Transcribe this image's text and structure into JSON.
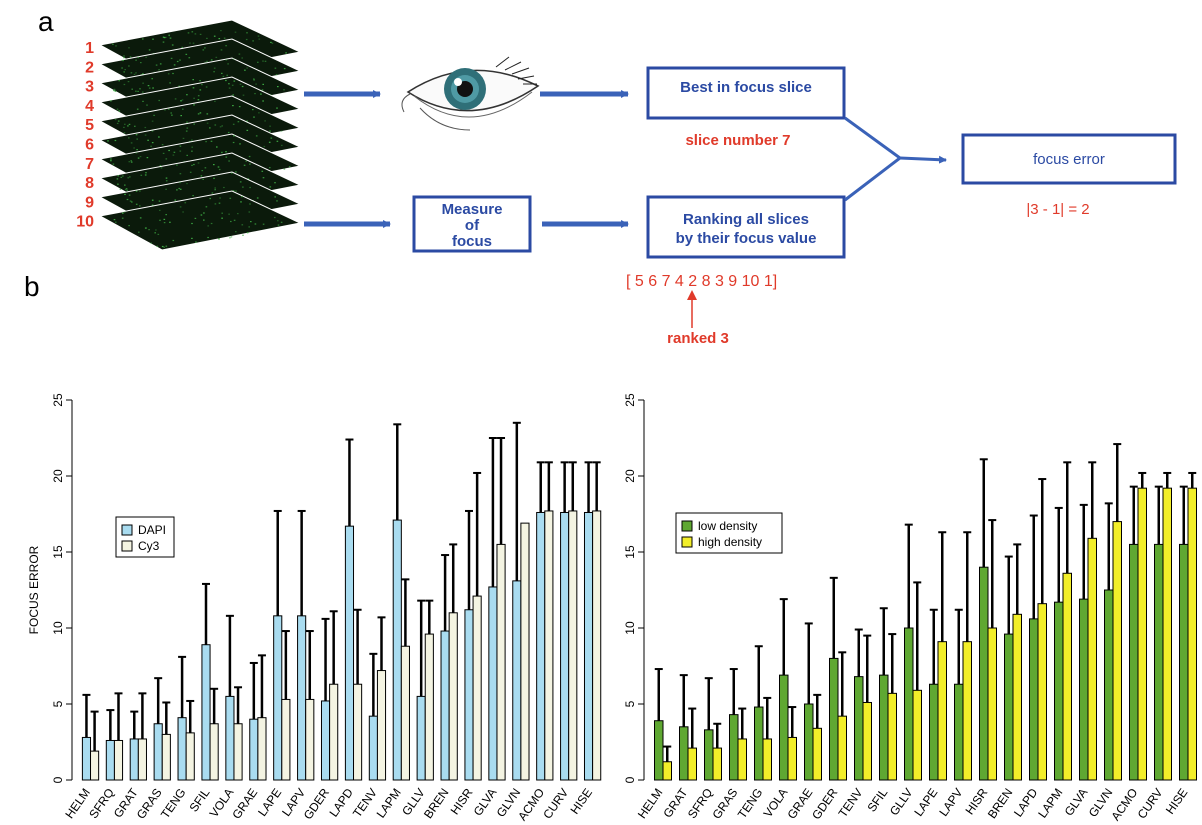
{
  "panel_a": {
    "letter": "a",
    "slice_numbers": [
      "1",
      "2",
      "3",
      "4",
      "5",
      "6",
      "7",
      "8",
      "9",
      "10"
    ],
    "best_box": "Best in focus slice",
    "best_note": "slice number 7",
    "measure_box": [
      "Measure",
      "of",
      "focus"
    ],
    "ranking_box": [
      "Ranking all slices",
      "by their focus value"
    ],
    "ranking_list": "[ 5  6  7  4  2  8  3  9  10  1]",
    "ranked_note": "ranked 3",
    "error_box": "focus error",
    "error_note": "|3 - 1| = 2",
    "colors": {
      "box": "#2b4aa3",
      "arrow": "#3a62b8",
      "red": "#e03a2a",
      "slice_green": "#3fae45"
    }
  },
  "panel_b": {
    "letter": "b"
  },
  "chart_data": [
    {
      "type": "bar",
      "ylabel": "FOCUS ERROR",
      "ylim": [
        0,
        25
      ],
      "yticks": [
        0,
        5,
        10,
        15,
        20,
        25
      ],
      "categories": [
        "HELM",
        "SFRQ",
        "GRAT",
        "GRAS",
        "TENG",
        "SFIL",
        "VOLA",
        "GRAE",
        "LAPE",
        "LAPV",
        "GDER",
        "LAPD",
        "TENV",
        "LAPM",
        "GLLV",
        "BREN",
        "HISR",
        "GLVA",
        "GLVN",
        "ACMO",
        "CURV",
        "HISE"
      ],
      "series": [
        {
          "name": "DAPI",
          "color": "#a9dcf0",
          "values": [
            2.8,
            2.6,
            2.7,
            3.7,
            4.1,
            8.9,
            5.5,
            4.0,
            10.8,
            10.8,
            5.2,
            16.7,
            4.2,
            17.1,
            5.5,
            9.8,
            11.2,
            12.7,
            13.1,
            17.6,
            17.6,
            17.6
          ],
          "errors": [
            2.8,
            2.0,
            1.8,
            3.0,
            4.0,
            4.0,
            5.3,
            3.7,
            6.9,
            6.9,
            5.4,
            5.7,
            4.1,
            6.3,
            6.3,
            5.0,
            6.5,
            9.8,
            10.4,
            3.3,
            3.3,
            3.3
          ]
        },
        {
          "name": "Cy3",
          "color": "#f4f4e2",
          "values": [
            1.9,
            2.6,
            2.7,
            3.0,
            3.1,
            3.7,
            3.7,
            4.1,
            5.3,
            5.3,
            6.3,
            6.3,
            7.2,
            8.8,
            9.6,
            11.0,
            12.1,
            15.5,
            16.9,
            17.7,
            17.7,
            17.7
          ],
          "errors": [
            2.6,
            3.1,
            3.0,
            2.1,
            2.1,
            2.3,
            2.4,
            4.1,
            4.5,
            4.5,
            4.8,
            4.9,
            3.5,
            4.4,
            2.2,
            4.5,
            8.1,
            7.0,
            0.0,
            3.2,
            3.2,
            3.2
          ]
        }
      ],
      "legend": "left"
    },
    {
      "type": "bar",
      "ylabel": "",
      "ylim": [
        0,
        25
      ],
      "yticks": [
        0,
        5,
        10,
        15,
        20,
        25
      ],
      "categories": [
        "HELM",
        "GRAT",
        "SFRQ",
        "GRAS",
        "TENG",
        "VOLA",
        "GRAE",
        "GDER",
        "TENV",
        "SFIL",
        "GLLV",
        "LAPE",
        "LAPV",
        "HISR",
        "BREN",
        "LAPD",
        "LAPM",
        "GLVA",
        "GLVN",
        "ACMO",
        "CURV",
        "HISE"
      ],
      "series": [
        {
          "name": "low density",
          "color": "#5fa832",
          "values": [
            3.9,
            3.5,
            3.3,
            4.3,
            4.8,
            6.9,
            5.0,
            8.0,
            6.8,
            6.9,
            10.0,
            6.3,
            6.3,
            14.0,
            9.6,
            10.6,
            11.7,
            11.9,
            12.5,
            15.5,
            15.5,
            15.5
          ],
          "errors": [
            3.4,
            3.4,
            3.4,
            3.0,
            4.0,
            5.0,
            5.3,
            5.3,
            3.1,
            4.4,
            6.8,
            4.9,
            4.9,
            7.1,
            5.1,
            6.8,
            6.2,
            6.2,
            5.7,
            3.8,
            3.8,
            3.8
          ]
        },
        {
          "name": "high density",
          "color": "#f2ee2a",
          "values": [
            1.2,
            2.1,
            2.1,
            2.7,
            2.7,
            2.8,
            3.4,
            4.2,
            5.1,
            5.7,
            5.9,
            9.1,
            9.1,
            10.0,
            10.9,
            11.6,
            13.6,
            15.9,
            17.0,
            19.2,
            19.2,
            19.2
          ],
          "errors": [
            1.0,
            2.6,
            1.6,
            2.0,
            2.7,
            2.0,
            2.2,
            4.2,
            4.4,
            3.9,
            7.1,
            7.2,
            7.2,
            7.1,
            4.6,
            8.2,
            7.3,
            5.0,
            5.1,
            1.0,
            1.0,
            1.0
          ]
        }
      ],
      "legend": "left"
    }
  ]
}
